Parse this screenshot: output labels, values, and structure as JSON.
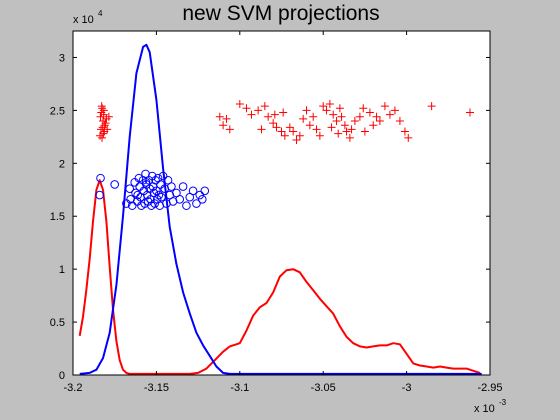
{
  "chart_data": {
    "type": "scatter",
    "title": "new SVM projections",
    "xlabel": "",
    "ylabel": "",
    "x_multiplier": {
      "base": "x 10",
      "exponent": "-3"
    },
    "y_multiplier": {
      "base": "x 10",
      "exponent": "4"
    },
    "xlim": [
      -3.2,
      -2.95
    ],
    "ylim": [
      0,
      3.25
    ],
    "x_ticks": [
      "-3.2",
      "-3.15",
      "-3.1",
      "-3.05",
      "-3",
      "-2.95"
    ],
    "x_tick_values": [
      -3.2,
      -3.15,
      -3.1,
      -3.05,
      -3.0,
      -2.95
    ],
    "y_ticks": [
      "0",
      "0.5",
      "1",
      "1.5",
      "2",
      "2.5",
      "3"
    ],
    "y_tick_values": [
      0,
      0.5,
      1,
      1.5,
      2,
      2.5,
      3
    ],
    "grid": false,
    "legend": "none",
    "colors": {
      "red": "#ff0000",
      "blue": "#0000ff",
      "axes_bg": "#ffffff",
      "figure_bg": "#c0c0c0"
    },
    "series": [
      {
        "kind": "scatter",
        "marker": "plus",
        "color": "#ff0000",
        "points": [
          [
            -3.1825,
            2.52
          ],
          [
            -3.183,
            2.48
          ],
          [
            -3.1815,
            2.5
          ],
          [
            -3.1835,
            2.44
          ],
          [
            -3.182,
            2.4
          ],
          [
            -3.181,
            2.36
          ],
          [
            -3.1832,
            2.32
          ],
          [
            -3.1818,
            2.28
          ],
          [
            -3.1826,
            2.24
          ],
          [
            -3.1812,
            2.3
          ],
          [
            -3.1838,
            2.26
          ],
          [
            -3.1822,
            2.34
          ],
          [
            -3.1805,
            2.38
          ],
          [
            -3.1795,
            2.32
          ],
          [
            -3.18,
            2.42
          ],
          [
            -3.1785,
            2.44
          ],
          [
            -3.1828,
            2.54
          ],
          [
            -3.1816,
            2.46
          ],
          [
            -3.112,
            2.44
          ],
          [
            -3.108,
            2.42
          ],
          [
            -3.11,
            2.36
          ],
          [
            -3.106,
            2.32
          ],
          [
            -3.1,
            2.56
          ],
          [
            -3.096,
            2.52
          ],
          [
            -3.093,
            2.46
          ],
          [
            -3.089,
            2.5
          ],
          [
            -3.085,
            2.54
          ],
          [
            -3.083,
            2.44
          ],
          [
            -3.08,
            2.38
          ],
          [
            -3.078,
            2.34
          ],
          [
            -3.075,
            2.3
          ],
          [
            -3.073,
            2.26
          ],
          [
            -3.07,
            2.34
          ],
          [
            -3.068,
            2.3
          ],
          [
            -3.066,
            2.22
          ],
          [
            -3.064,
            2.26
          ],
          [
            -3.074,
            2.48
          ],
          [
            -3.062,
            2.42
          ],
          [
            -3.06,
            2.5
          ],
          [
            -3.058,
            2.36
          ],
          [
            -3.056,
            2.44
          ],
          [
            -3.054,
            2.32
          ],
          [
            -3.052,
            2.26
          ],
          [
            -3.05,
            2.54
          ],
          [
            -3.048,
            2.5
          ],
          [
            -3.046,
            2.56
          ],
          [
            -3.044,
            2.46
          ],
          [
            -3.042,
            2.4
          ],
          [
            -3.041,
            2.28
          ],
          [
            -3.04,
            2.52
          ],
          [
            -3.039,
            2.44
          ],
          [
            -3.037,
            2.36
          ],
          [
            -3.036,
            2.3
          ],
          [
            -3.034,
            2.24
          ],
          [
            -3.033,
            2.32
          ],
          [
            -3.031,
            2.4
          ],
          [
            -3.028,
            2.44
          ],
          [
            -3.026,
            2.52
          ],
          [
            -3.025,
            2.3
          ],
          [
            -3.022,
            2.48
          ],
          [
            -3.02,
            2.36
          ],
          [
            -3.018,
            2.44
          ],
          [
            -3.016,
            2.4
          ],
          [
            -3.013,
            2.54
          ],
          [
            -3.01,
            2.46
          ],
          [
            -3.007,
            2.5
          ],
          [
            -3.004,
            2.4
          ],
          [
            -3.001,
            2.3
          ],
          [
            -2.999,
            2.24
          ],
          [
            -2.985,
            2.54
          ],
          [
            -2.962,
            2.48
          ],
          [
            -3.079,
            2.46
          ],
          [
            -3.087,
            2.32
          ],
          [
            -3.045,
            2.34
          ]
        ]
      },
      {
        "kind": "scatter",
        "marker": "circle",
        "color": "#0000ff",
        "points": [
          [
            -3.1835,
            1.86
          ],
          [
            -3.184,
            1.7
          ],
          [
            -3.175,
            1.8
          ],
          [
            -3.168,
            1.62
          ],
          [
            -3.166,
            1.76
          ],
          [
            -3.1655,
            1.66
          ],
          [
            -3.1645,
            1.6
          ],
          [
            -3.163,
            1.82
          ],
          [
            -3.1625,
            1.72
          ],
          [
            -3.1615,
            1.64
          ],
          [
            -3.1605,
            1.86
          ],
          [
            -3.16,
            1.78
          ],
          [
            -3.1595,
            1.68
          ],
          [
            -3.159,
            1.6
          ],
          [
            -3.158,
            1.84
          ],
          [
            -3.1575,
            1.74
          ],
          [
            -3.157,
            1.62
          ],
          [
            -3.1565,
            1.9
          ],
          [
            -3.156,
            1.8
          ],
          [
            -3.1555,
            1.7
          ],
          [
            -3.155,
            1.64
          ],
          [
            -3.1545,
            1.84
          ],
          [
            -3.154,
            1.76
          ],
          [
            -3.1535,
            1.66
          ],
          [
            -3.153,
            1.6
          ],
          [
            -3.1525,
            1.88
          ],
          [
            -3.152,
            1.78
          ],
          [
            -3.1515,
            1.72
          ],
          [
            -3.151,
            1.62
          ],
          [
            -3.1505,
            1.84
          ],
          [
            -3.15,
            1.74
          ],
          [
            -3.1495,
            1.66
          ],
          [
            -3.149,
            1.86
          ],
          [
            -3.1485,
            1.7
          ],
          [
            -3.148,
            1.6
          ],
          [
            -3.1475,
            1.8
          ],
          [
            -3.147,
            1.68
          ],
          [
            -3.146,
            1.88
          ],
          [
            -3.145,
            1.76
          ],
          [
            -3.144,
            1.62
          ],
          [
            -3.143,
            1.84
          ],
          [
            -3.142,
            1.7
          ],
          [
            -3.141,
            1.78
          ],
          [
            -3.14,
            1.64
          ],
          [
            -3.138,
            1.72
          ],
          [
            -3.136,
            1.66
          ],
          [
            -3.134,
            1.78
          ],
          [
            -3.132,
            1.6
          ],
          [
            -3.13,
            1.68
          ],
          [
            -3.128,
            1.74
          ],
          [
            -3.126,
            1.62
          ],
          [
            -3.124,
            1.7
          ],
          [
            -3.1225,
            1.66
          ],
          [
            -3.121,
            1.74
          ],
          [
            -3.1612,
            1.7
          ],
          [
            -3.1562,
            1.82
          ]
        ]
      },
      {
        "kind": "line",
        "color": "#ff0000",
        "x": [
          -3.196,
          -3.194,
          -3.192,
          -3.19,
          -3.188,
          -3.186,
          -3.184,
          -3.182,
          -3.18,
          -3.178,
          -3.176,
          -3.174,
          -3.172,
          -3.17,
          -3.168,
          -3.166,
          -3.162,
          -3.156,
          -3.15,
          -3.14,
          -3.13,
          -3.125,
          -3.12,
          -3.115,
          -3.11,
          -3.106,
          -3.1,
          -3.096,
          -3.092,
          -3.088,
          -3.084,
          -3.08,
          -3.076,
          -3.072,
          -3.068,
          -3.064,
          -3.06,
          -3.056,
          -3.052,
          -3.048,
          -3.044,
          -3.04,
          -3.036,
          -3.032,
          -3.028,
          -3.024,
          -3.02,
          -3.016,
          -3.012,
          -3.008,
          -3.004,
          -3.0,
          -2.996,
          -2.992,
          -2.988,
          -2.984,
          -2.98,
          -2.976,
          -2.972,
          -2.968,
          -2.964,
          -2.96,
          -2.956
        ],
        "y": [
          0.37,
          0.55,
          0.8,
          1.1,
          1.45,
          1.75,
          1.84,
          1.75,
          1.45,
          1.02,
          0.62,
          0.32,
          0.14,
          0.05,
          0.02,
          0.01,
          0.01,
          0.01,
          0.01,
          0.01,
          0.01,
          0.02,
          0.06,
          0.14,
          0.22,
          0.27,
          0.3,
          0.42,
          0.56,
          0.64,
          0.68,
          0.78,
          0.93,
          0.99,
          1.0,
          0.97,
          0.88,
          0.8,
          0.72,
          0.65,
          0.58,
          0.46,
          0.36,
          0.3,
          0.27,
          0.26,
          0.27,
          0.28,
          0.28,
          0.3,
          0.29,
          0.2,
          0.11,
          0.09,
          0.08,
          0.07,
          0.08,
          0.07,
          0.06,
          0.06,
          0.06,
          0.04,
          0.02
        ]
      },
      {
        "kind": "line",
        "color": "#0000ff",
        "x": [
          -3.196,
          -3.19,
          -3.186,
          -3.182,
          -3.178,
          -3.174,
          -3.17,
          -3.166,
          -3.162,
          -3.158,
          -3.156,
          -3.154,
          -3.15,
          -3.146,
          -3.142,
          -3.138,
          -3.134,
          -3.13,
          -3.126,
          -3.122,
          -3.118,
          -3.114,
          -3.11,
          -3.106,
          -3.1,
          -3.09,
          -3.07,
          -3.05,
          -3.0,
          -2.955
        ],
        "y": [
          0.01,
          0.02,
          0.05,
          0.16,
          0.4,
          0.85,
          1.5,
          2.25,
          2.85,
          3.1,
          3.12,
          3.05,
          2.6,
          1.95,
          1.4,
          1.05,
          0.78,
          0.58,
          0.4,
          0.28,
          0.18,
          0.08,
          0.02,
          0.01,
          0.01,
          0.01,
          0.01,
          0.01,
          0.01,
          0.01
        ]
      }
    ]
  }
}
